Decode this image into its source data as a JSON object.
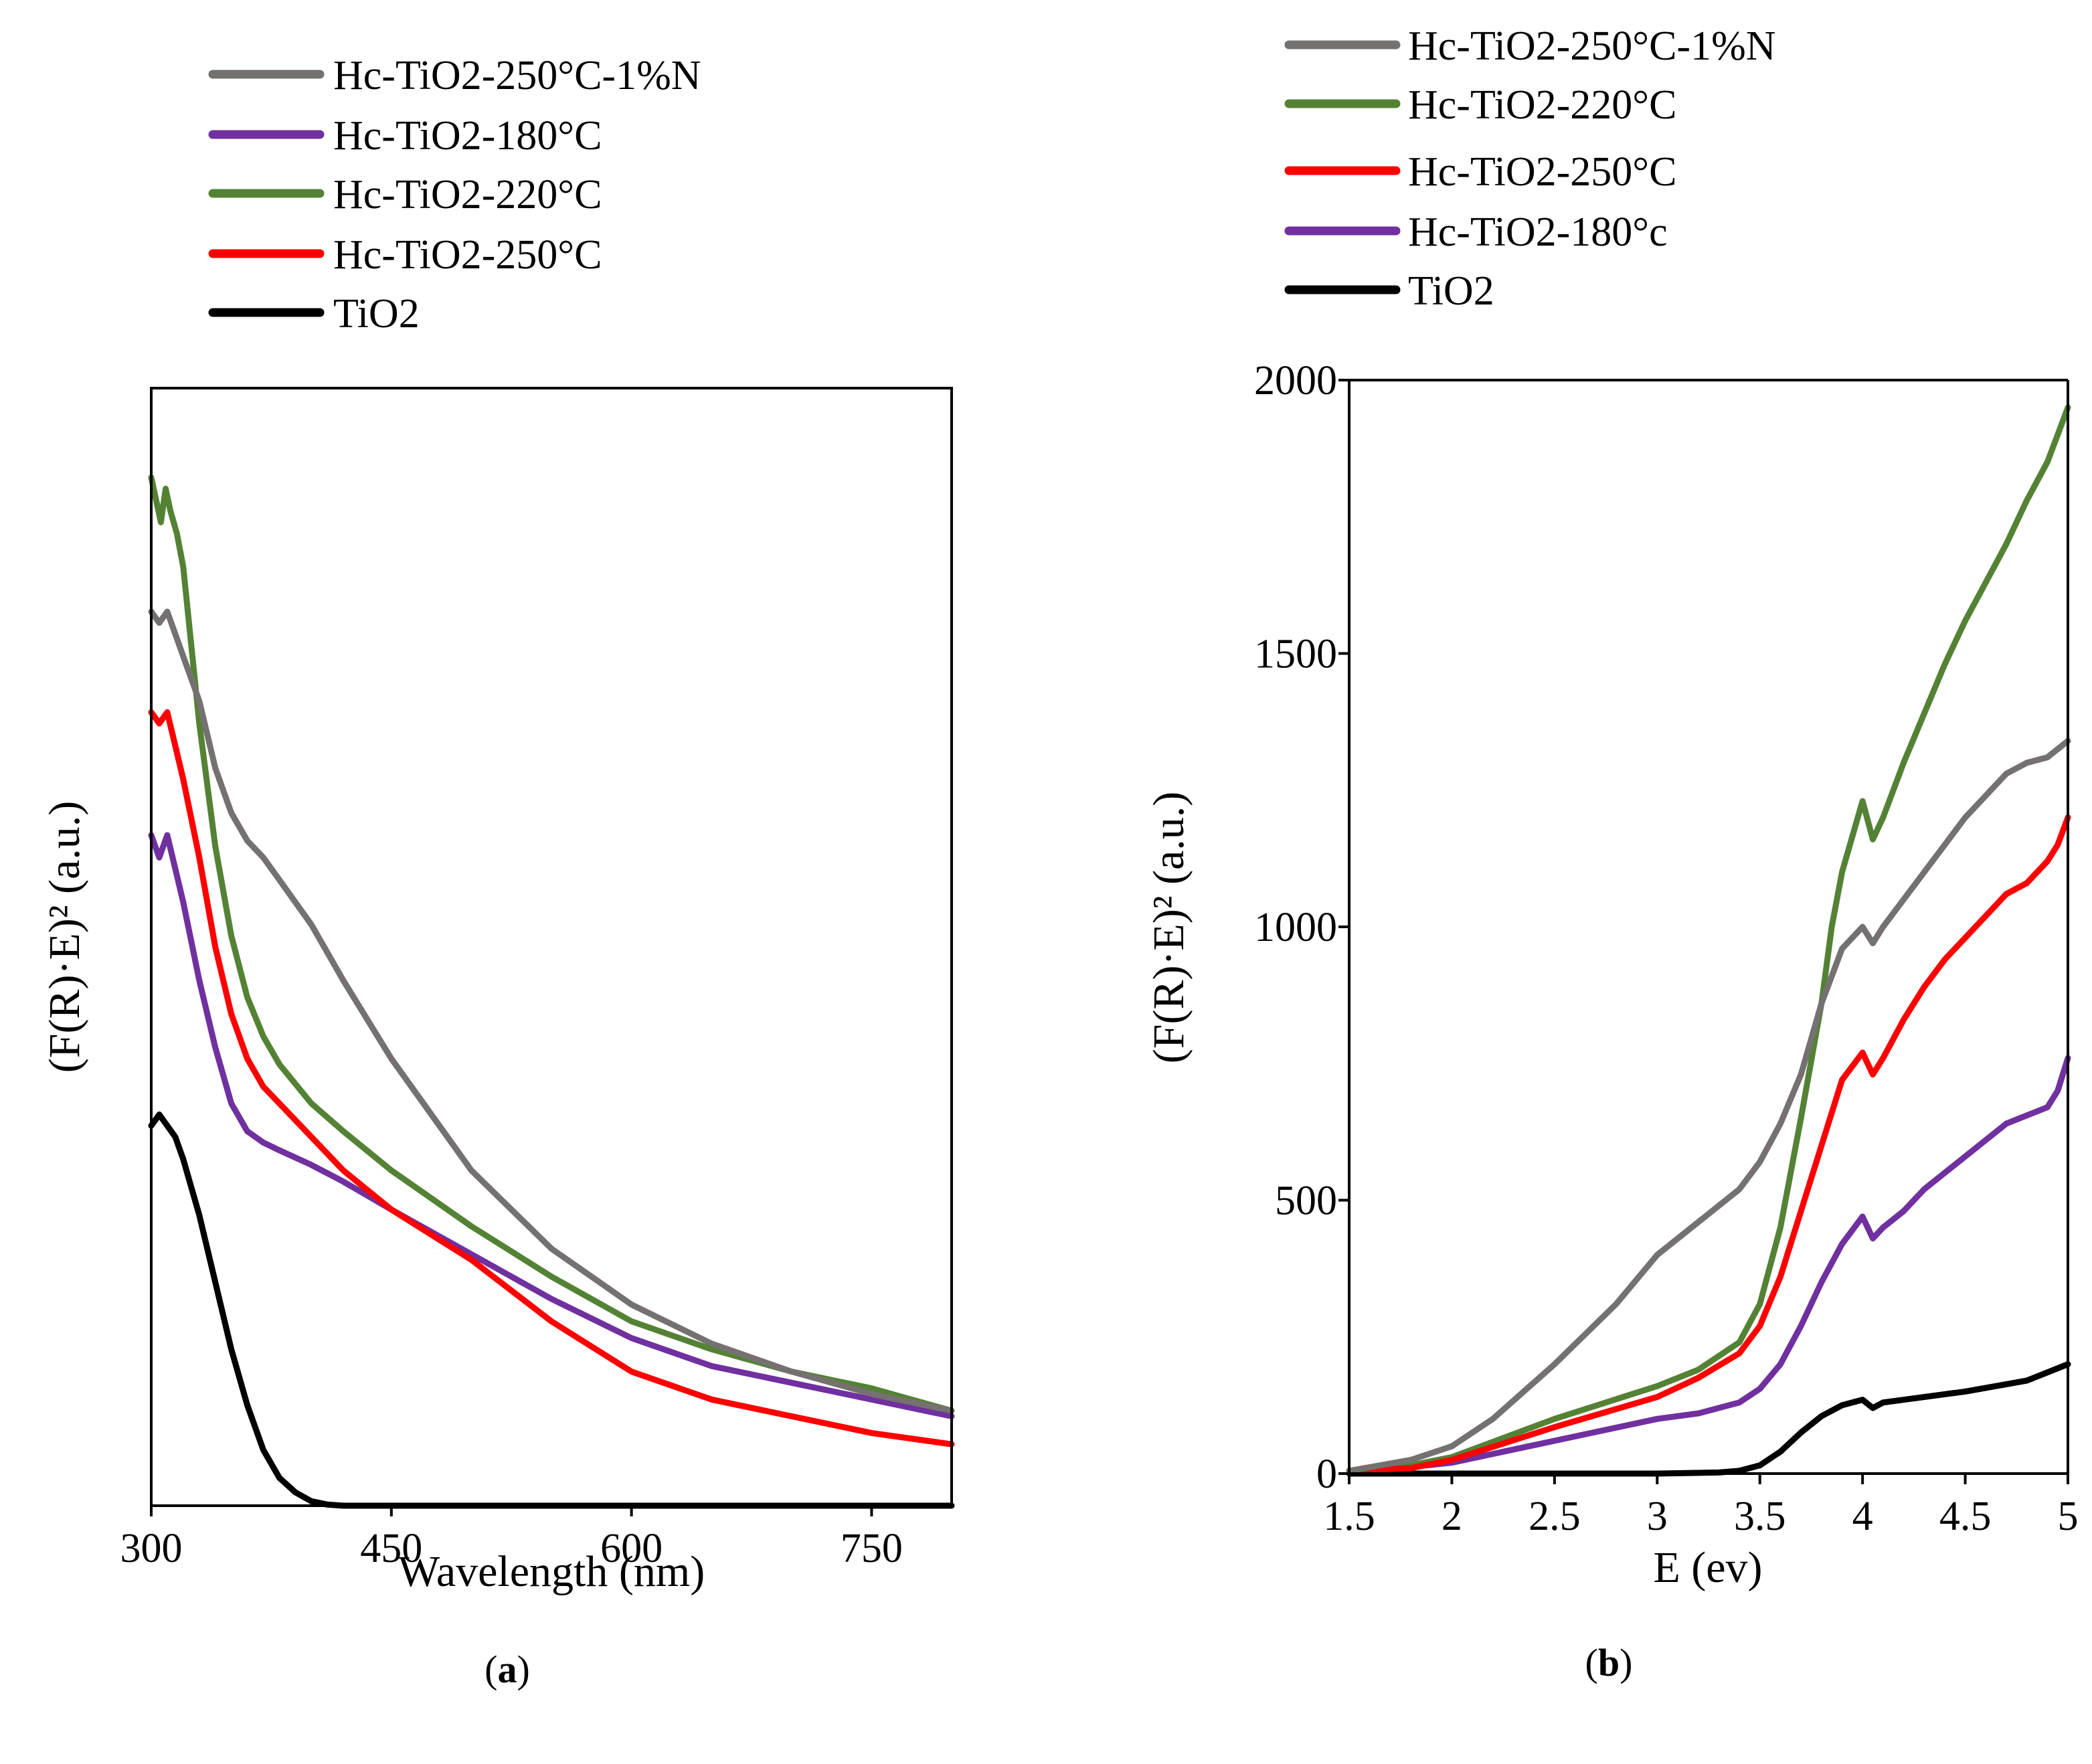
{
  "chart_data": [
    {
      "panel": "a",
      "type": "line",
      "panel_label": {
        "open": "(",
        "letter": "a",
        "close": ")"
      },
      "xlabel": "Wavelength (nm)",
      "ylabel": "(F(R)·E)² (a.u.)",
      "xlim": [
        300,
        800
      ],
      "ylim": [
        0,
        1.0
      ],
      "x_ticks": [
        300,
        450,
        600,
        750
      ],
      "y_ticks": [],
      "legend_position": "top-center",
      "legend_order": [
        4,
        1,
        2,
        3,
        0
      ],
      "series": [
        {
          "name": "TiO2",
          "color": "#000000",
          "x": [
            300,
            305,
            310,
            315,
            320,
            330,
            340,
            350,
            360,
            370,
            380,
            390,
            400,
            410,
            420,
            500,
            600,
            700,
            800
          ],
          "y": [
            0.34,
            0.35,
            0.34,
            0.33,
            0.31,
            0.26,
            0.2,
            0.14,
            0.09,
            0.05,
            0.025,
            0.012,
            0.004,
            0.001,
            0.0,
            0.0,
            0.0,
            0.0,
            0.0
          ]
        },
        {
          "name": "Hc-TiO2-180°C",
          "color": "#7030A0",
          "x": [
            300,
            305,
            310,
            315,
            320,
            330,
            340,
            350,
            360,
            370,
            380,
            400,
            420,
            450,
            500,
            550,
            600,
            650,
            700,
            750,
            800
          ],
          "y": [
            0.6,
            0.58,
            0.6,
            0.57,
            0.54,
            0.47,
            0.41,
            0.36,
            0.335,
            0.325,
            0.318,
            0.305,
            0.29,
            0.265,
            0.225,
            0.185,
            0.15,
            0.125,
            0.11,
            0.095,
            0.08
          ]
        },
        {
          "name": "Hc-TiO2-220°C",
          "color": "#548235",
          "x": [
            300,
            303,
            306,
            309,
            312,
            316,
            320,
            325,
            330,
            340,
            350,
            360,
            370,
            380,
            400,
            420,
            450,
            500,
            550,
            600,
            650,
            700,
            750,
            800
          ],
          "y": [
            0.92,
            0.9,
            0.88,
            0.91,
            0.89,
            0.87,
            0.84,
            0.77,
            0.7,
            0.59,
            0.51,
            0.455,
            0.42,
            0.395,
            0.36,
            0.335,
            0.3,
            0.25,
            0.205,
            0.165,
            0.14,
            0.12,
            0.105,
            0.085
          ]
        },
        {
          "name": "Hc-TiO2-250°C",
          "color": "#FF0000",
          "x": [
            300,
            305,
            310,
            315,
            320,
            330,
            340,
            350,
            360,
            370,
            380,
            400,
            420,
            450,
            500,
            550,
            600,
            650,
            700,
            750,
            800
          ],
          "y": [
            0.71,
            0.7,
            0.71,
            0.68,
            0.65,
            0.58,
            0.5,
            0.44,
            0.4,
            0.375,
            0.36,
            0.33,
            0.3,
            0.265,
            0.22,
            0.165,
            0.12,
            0.095,
            0.08,
            0.065,
            0.055
          ]
        },
        {
          "name": "Hc-TiO2-250°C-1%N",
          "color": "#767171",
          "x": [
            300,
            305,
            310,
            315,
            320,
            330,
            340,
            350,
            360,
            370,
            380,
            400,
            420,
            450,
            500,
            550,
            600,
            650,
            700,
            750,
            800
          ],
          "y": [
            0.8,
            0.79,
            0.8,
            0.78,
            0.76,
            0.72,
            0.66,
            0.62,
            0.595,
            0.58,
            0.56,
            0.52,
            0.47,
            0.4,
            0.3,
            0.23,
            0.18,
            0.145,
            0.12,
            0.1,
            0.085
          ]
        }
      ]
    },
    {
      "panel": "b",
      "type": "line",
      "panel_label": {
        "open": "(",
        "letter": "b",
        "close": ")"
      },
      "xlabel": "E (ev)",
      "ylabel": "(F(R)·E)² (a.u.)",
      "xlim": [
        1.5,
        5
      ],
      "ylim": [
        0,
        2000
      ],
      "x_ticks": [
        1.5,
        2,
        2.5,
        3,
        3.5,
        4,
        4.5,
        5
      ],
      "y_ticks": [
        0,
        500,
        1000,
        1500,
        2000
      ],
      "legend_position": "top-center",
      "legend_order": [
        4,
        2,
        3,
        1,
        0
      ],
      "series": [
        {
          "name": "TiO2",
          "color": "#000000",
          "x": [
            1.5,
            2.0,
            2.5,
            3.0,
            3.3,
            3.4,
            3.5,
            3.6,
            3.7,
            3.8,
            3.9,
            4.0,
            4.05,
            4.1,
            4.2,
            4.5,
            4.8,
            5.0
          ],
          "y": [
            0,
            0,
            0,
            0,
            2,
            5,
            15,
            40,
            75,
            105,
            125,
            135,
            120,
            130,
            135,
            150,
            170,
            200
          ]
        },
        {
          "name": "Hc-TiO2-180°c",
          "color": "#7030A0",
          "x": [
            1.5,
            1.8,
            2.0,
            2.5,
            3.0,
            3.2,
            3.4,
            3.5,
            3.6,
            3.7,
            3.8,
            3.9,
            4.0,
            4.05,
            4.1,
            4.2,
            4.3,
            4.5,
            4.7,
            4.9,
            4.95,
            5.0
          ],
          "y": [
            5,
            12,
            20,
            60,
            100,
            110,
            130,
            155,
            200,
            270,
            350,
            420,
            470,
            430,
            450,
            480,
            520,
            580,
            640,
            670,
            700,
            760
          ]
        },
        {
          "name": "Hc-TiO2-220°C",
          "color": "#548235",
          "x": [
            1.5,
            1.8,
            2.0,
            2.5,
            3.0,
            3.2,
            3.4,
            3.5,
            3.6,
            3.7,
            3.8,
            3.85,
            3.9,
            4.0,
            4.05,
            4.1,
            4.2,
            4.3,
            4.4,
            4.5,
            4.6,
            4.7,
            4.8,
            4.9,
            4.95,
            5.0
          ],
          "y": [
            5,
            15,
            30,
            100,
            160,
            190,
            240,
            310,
            450,
            650,
            860,
            1000,
            1100,
            1230,
            1160,
            1200,
            1300,
            1390,
            1480,
            1560,
            1630,
            1700,
            1780,
            1850,
            1900,
            1950
          ]
        },
        {
          "name": "Hc-TiO2-250°C",
          "color": "#FF0000",
          "x": [
            1.5,
            1.8,
            2.0,
            2.5,
            3.0,
            3.2,
            3.4,
            3.5,
            3.6,
            3.7,
            3.8,
            3.9,
            4.0,
            4.05,
            4.1,
            4.2,
            4.3,
            4.4,
            4.5,
            4.6,
            4.7,
            4.8,
            4.9,
            4.95,
            5.0
          ],
          "y": [
            5,
            10,
            25,
            85,
            140,
            175,
            220,
            270,
            360,
            480,
            600,
            720,
            770,
            730,
            760,
            830,
            890,
            940,
            980,
            1020,
            1060,
            1080,
            1120,
            1150,
            1200
          ]
        },
        {
          "name": "Hc-TiO2-250°C-1%N",
          "color": "#767171",
          "x": [
            1.5,
            1.8,
            2.0,
            2.2,
            2.5,
            2.8,
            3.0,
            3.2,
            3.4,
            3.5,
            3.6,
            3.7,
            3.8,
            3.9,
            4.0,
            4.05,
            4.1,
            4.2,
            4.3,
            4.4,
            4.5,
            4.6,
            4.7,
            4.8,
            4.9,
            5.0
          ],
          "y": [
            5,
            25,
            50,
            100,
            200,
            310,
            400,
            460,
            520,
            570,
            640,
            730,
            860,
            960,
            1000,
            970,
            1000,
            1050,
            1100,
            1150,
            1200,
            1240,
            1280,
            1300,
            1310,
            1340
          ]
        }
      ]
    }
  ]
}
